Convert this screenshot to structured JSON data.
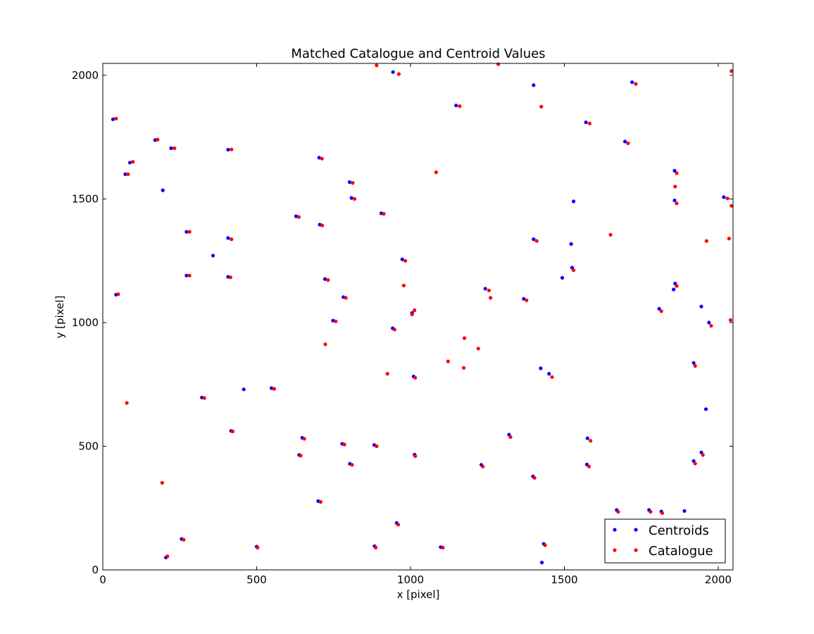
{
  "chart_data": {
    "type": "scatter",
    "title": "Matched Catalogue and Centroid Values",
    "xlabel": "x [pixel]",
    "ylabel": "y [pixel]",
    "xlim": [
      0,
      2048
    ],
    "ylim": [
      0,
      2048
    ],
    "xticks": [
      0,
      500,
      1000,
      1500,
      2000
    ],
    "yticks": [
      0,
      500,
      1000,
      1500,
      2000
    ],
    "grid": false,
    "legend_position": "lower-right",
    "series": [
      {
        "name": "Centroids",
        "color": "#0000ff",
        "points": [
          [
            33,
            1822
          ],
          [
            170,
            1738
          ],
          [
            222,
            1705
          ],
          [
            407,
            1699
          ],
          [
            703,
            1667
          ],
          [
            88,
            1647
          ],
          [
            73,
            1600
          ],
          [
            802,
            1568
          ],
          [
            195,
            1535
          ],
          [
            808,
            1504
          ],
          [
            905,
            1442
          ],
          [
            628,
            1430
          ],
          [
            705,
            1396
          ],
          [
            272,
            1367
          ],
          [
            407,
            1342
          ],
          [
            358,
            1271
          ],
          [
            973,
            1256
          ],
          [
            272,
            1190
          ],
          [
            407,
            1185
          ],
          [
            43,
            1113
          ],
          [
            722,
            1176
          ],
          [
            782,
            1103
          ],
          [
            748,
            1008
          ],
          [
            942,
            977
          ],
          [
            1005,
            1039
          ],
          [
            1010,
            782
          ],
          [
            458,
            730
          ],
          [
            548,
            735
          ],
          [
            322,
            697
          ],
          [
            417,
            562
          ],
          [
            648,
            534
          ],
          [
            778,
            510
          ],
          [
            638,
            465
          ],
          [
            882,
            505
          ],
          [
            803,
            429
          ],
          [
            1013,
            466
          ],
          [
            700,
            278
          ],
          [
            256,
            125
          ],
          [
            205,
            50
          ],
          [
            500,
            94
          ],
          [
            883,
            96
          ],
          [
            955,
            190
          ],
          [
            1098,
            92
          ],
          [
            943,
            2013
          ],
          [
            1148,
            1878
          ],
          [
            1400,
            1960
          ],
          [
            1570,
            1810
          ],
          [
            1697,
            1732
          ],
          [
            1720,
            1972
          ],
          [
            1858,
            1614
          ],
          [
            1858,
            1494
          ],
          [
            2018,
            1507
          ],
          [
            1400,
            1337
          ],
          [
            1522,
            1318
          ],
          [
            1530,
            1490
          ],
          [
            1525,
            1222
          ],
          [
            1493,
            1181
          ],
          [
            1243,
            1137
          ],
          [
            1368,
            1096
          ],
          [
            1860,
            1158
          ],
          [
            1855,
            1134
          ],
          [
            1808,
            1056
          ],
          [
            1945,
            1065
          ],
          [
            1970,
            1000
          ],
          [
            1920,
            837
          ],
          [
            1423,
            815
          ],
          [
            1450,
            793
          ],
          [
            1960,
            650
          ],
          [
            1320,
            547
          ],
          [
            1575,
            532
          ],
          [
            1230,
            425
          ],
          [
            1573,
            426
          ],
          [
            1398,
            378
          ],
          [
            1920,
            440
          ],
          [
            1945,
            475
          ],
          [
            1670,
            242
          ],
          [
            1775,
            242
          ],
          [
            1815,
            236
          ],
          [
            1890,
            238
          ],
          [
            1433,
            105
          ],
          [
            1427,
            30
          ]
        ]
      },
      {
        "name": "Catalogue",
        "color": "#ff0000",
        "points": [
          [
            43,
            1825
          ],
          [
            178,
            1740
          ],
          [
            233,
            1705
          ],
          [
            418,
            1700
          ],
          [
            712,
            1663
          ],
          [
            98,
            1650
          ],
          [
            82,
            1600
          ],
          [
            812,
            1565
          ],
          [
            818,
            1500
          ],
          [
            913,
            1440
          ],
          [
            637,
            1427
          ],
          [
            713,
            1393
          ],
          [
            282,
            1367
          ],
          [
            418,
            1337
          ],
          [
            983,
            1250
          ],
          [
            282,
            1190
          ],
          [
            415,
            1183
          ],
          [
            50,
            1115
          ],
          [
            732,
            1172
          ],
          [
            790,
            1100
          ],
          [
            757,
            1005
          ],
          [
            948,
            972
          ],
          [
            1013,
            1050
          ],
          [
            1005,
            1033
          ],
          [
            1015,
            777
          ],
          [
            557,
            732
          ],
          [
            330,
            695
          ],
          [
            422,
            560
          ],
          [
            655,
            530
          ],
          [
            785,
            507
          ],
          [
            643,
            462
          ],
          [
            890,
            500
          ],
          [
            810,
            425
          ],
          [
            1015,
            460
          ],
          [
            708,
            275
          ],
          [
            263,
            122
          ],
          [
            210,
            55
          ],
          [
            503,
            90
          ],
          [
            887,
            90
          ],
          [
            960,
            183
          ],
          [
            1105,
            90
          ],
          [
            193,
            352
          ],
          [
            78,
            675
          ],
          [
            723,
            912
          ],
          [
            978,
            1150
          ],
          [
            925,
            793
          ],
          [
            1083,
            1608
          ],
          [
            890,
            2040
          ],
          [
            962,
            2005
          ],
          [
            1160,
            1875
          ],
          [
            1285,
            2045
          ],
          [
            1425,
            1873
          ],
          [
            1582,
            1805
          ],
          [
            1707,
            1725
          ],
          [
            1732,
            1965
          ],
          [
            1865,
            1604
          ],
          [
            1860,
            1550
          ],
          [
            1865,
            1482
          ],
          [
            2030,
            1502
          ],
          [
            2043,
            1472
          ],
          [
            1410,
            1330
          ],
          [
            1650,
            1355
          ],
          [
            1530,
            1212
          ],
          [
            1255,
            1130
          ],
          [
            1260,
            1100
          ],
          [
            1377,
            1090
          ],
          [
            1865,
            1148
          ],
          [
            1815,
            1046
          ],
          [
            1962,
            1330
          ],
          [
            2035,
            1340
          ],
          [
            2040,
            1010
          ],
          [
            1977,
            987
          ],
          [
            1925,
            825
          ],
          [
            1175,
            937
          ],
          [
            1220,
            895
          ],
          [
            1122,
            843
          ],
          [
            1173,
            817
          ],
          [
            1460,
            780
          ],
          [
            1325,
            537
          ],
          [
            1585,
            522
          ],
          [
            1235,
            418
          ],
          [
            1580,
            418
          ],
          [
            1403,
            372
          ],
          [
            1925,
            430
          ],
          [
            1950,
            465
          ],
          [
            1675,
            235
          ],
          [
            1780,
            235
          ],
          [
            1818,
            230
          ],
          [
            1437,
            100
          ],
          [
            2043,
            2017
          ]
        ]
      }
    ]
  }
}
